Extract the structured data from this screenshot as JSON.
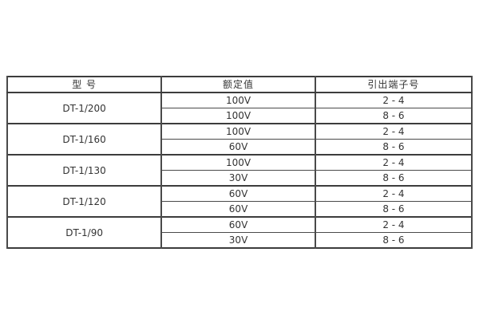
{
  "table": {
    "headers": {
      "model": "型 号",
      "rated": "额定值",
      "terminal": "引出端子号"
    },
    "groups": [
      {
        "model": "DT-1/200",
        "rows": [
          {
            "rated": "100V",
            "terminal": "2 - 4"
          },
          {
            "rated": "100V",
            "terminal": "8 - 6"
          }
        ]
      },
      {
        "model": "DT-1/160",
        "rows": [
          {
            "rated": "100V",
            "terminal": "2 - 4"
          },
          {
            "rated": "60V",
            "terminal": "8 - 6"
          }
        ]
      },
      {
        "model": "DT-1/130",
        "rows": [
          {
            "rated": "100V",
            "terminal": "2 - 4"
          },
          {
            "rated": "30V",
            "terminal": "8 - 6"
          }
        ]
      },
      {
        "model": "DT-1/120",
        "rows": [
          {
            "rated": "60V",
            "terminal": "2 - 4"
          },
          {
            "rated": "60V",
            "terminal": "8 - 6"
          }
        ]
      },
      {
        "model": "DT-1/90",
        "rows": [
          {
            "rated": "60V",
            "terminal": "2 - 4"
          },
          {
            "rated": "30V",
            "terminal": "8 - 6"
          }
        ]
      }
    ]
  }
}
